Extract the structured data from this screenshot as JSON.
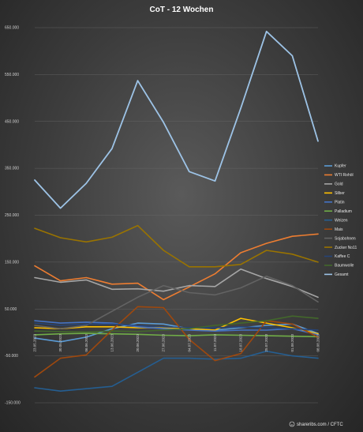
{
  "chart_data": {
    "type": "line",
    "title": "CoT - 12 Wochen",
    "credit": "shareribs.com / CFTC",
    "credit_icon": "copyright-icon",
    "ylim": [
      -150000,
      650000
    ],
    "yticks": [
      "-150.000",
      "-50.000",
      "50.000",
      "150.000",
      "250.000",
      "350.000",
      "450.000",
      "550.000",
      "650.000"
    ],
    "ytick_values": [
      -150000,
      -50000,
      50000,
      150000,
      250000,
      350000,
      450000,
      550000,
      650000
    ],
    "x": [
      "23.05.2023",
      "30.05.2023",
      "06.06.2023",
      "13.06.2023",
      "20.06.2023",
      "27.06.2023",
      "04.07.2023",
      "11.07.2023",
      "18.07.2023",
      "25.07.2023",
      "01.08.2023",
      "08.08.2023"
    ],
    "legend_position": "right",
    "series": [
      {
        "name": "Kupfer",
        "color": "#5b9bd5",
        "values": [
          -12000,
          -20000,
          -10000,
          8000,
          20000,
          18000,
          8000,
          5000,
          10000,
          15000,
          18000,
          -2000
        ]
      },
      {
        "name": "WTI Rohöl",
        "color": "#ed7d31",
        "values": [
          142000,
          110000,
          117000,
          103000,
          105000,
          70000,
          97000,
          125000,
          170000,
          190000,
          205000,
          210000
        ]
      },
      {
        "name": "Gold",
        "color": "#a5a5a5",
        "values": [
          117000,
          107000,
          112000,
          92000,
          93000,
          88000,
          100000,
          98000,
          135000,
          115000,
          98000,
          75000
        ]
      },
      {
        "name": "Silber",
        "color": "#ffc000",
        "values": [
          10000,
          8000,
          12000,
          12000,
          10000,
          10000,
          8000,
          5000,
          30000,
          20000,
          10000,
          -3000
        ]
      },
      {
        "name": "Platin",
        "color": "#4472c4",
        "values": [
          25000,
          20000,
          22000,
          20000,
          12000,
          8000,
          5000,
          3000,
          5000,
          5000,
          8000,
          -5000
        ]
      },
      {
        "name": "Palladium",
        "color": "#70ad47",
        "values": [
          -5000,
          -3000,
          -2000,
          -3000,
          -4000,
          -6000,
          -7000,
          -5000,
          -6000,
          -7000,
          -8000,
          -9000
        ]
      },
      {
        "name": "Weizen",
        "color": "#255e91",
        "values": [
          -118000,
          -125000,
          -120000,
          -115000,
          -85000,
          -55000,
          -55000,
          -57000,
          -55000,
          -40000,
          -50000,
          -55000
        ]
      },
      {
        "name": "Mais",
        "color": "#9e480e",
        "values": [
          -95000,
          -55000,
          -48000,
          5000,
          55000,
          53000,
          -15000,
          -60000,
          -45000,
          25000,
          18000,
          -10000
        ]
      },
      {
        "name": "Sojabohnen",
        "color": "#636363",
        "values": [
          15000,
          8000,
          15000,
          45000,
          75000,
          100000,
          85000,
          80000,
          95000,
          120000,
          100000,
          65000
        ]
      },
      {
        "name": "Zucker No11",
        "color": "#997300",
        "values": [
          222000,
          202000,
          193000,
          203000,
          228000,
          175000,
          140000,
          140000,
          145000,
          175000,
          167000,
          150000
        ]
      },
      {
        "name": "Kaffee C",
        "color": "#264478",
        "values": [
          20000,
          15000,
          18000,
          18000,
          15000,
          12000,
          10000,
          10000,
          12000,
          10000,
          8000,
          5000
        ]
      },
      {
        "name": "Baumwolle",
        "color": "#43682b",
        "values": [
          3000,
          2000,
          1000,
          3000,
          2000,
          5000,
          8000,
          15000,
          20000,
          25000,
          35000,
          30000
        ]
      },
      {
        "name": "Gesamt",
        "color": "#9dc3e6",
        "values": [
          325000,
          265000,
          318000,
          392000,
          537000,
          448000,
          343000,
          323000,
          478000,
          642000,
          590000,
          408000
        ]
      }
    ]
  }
}
